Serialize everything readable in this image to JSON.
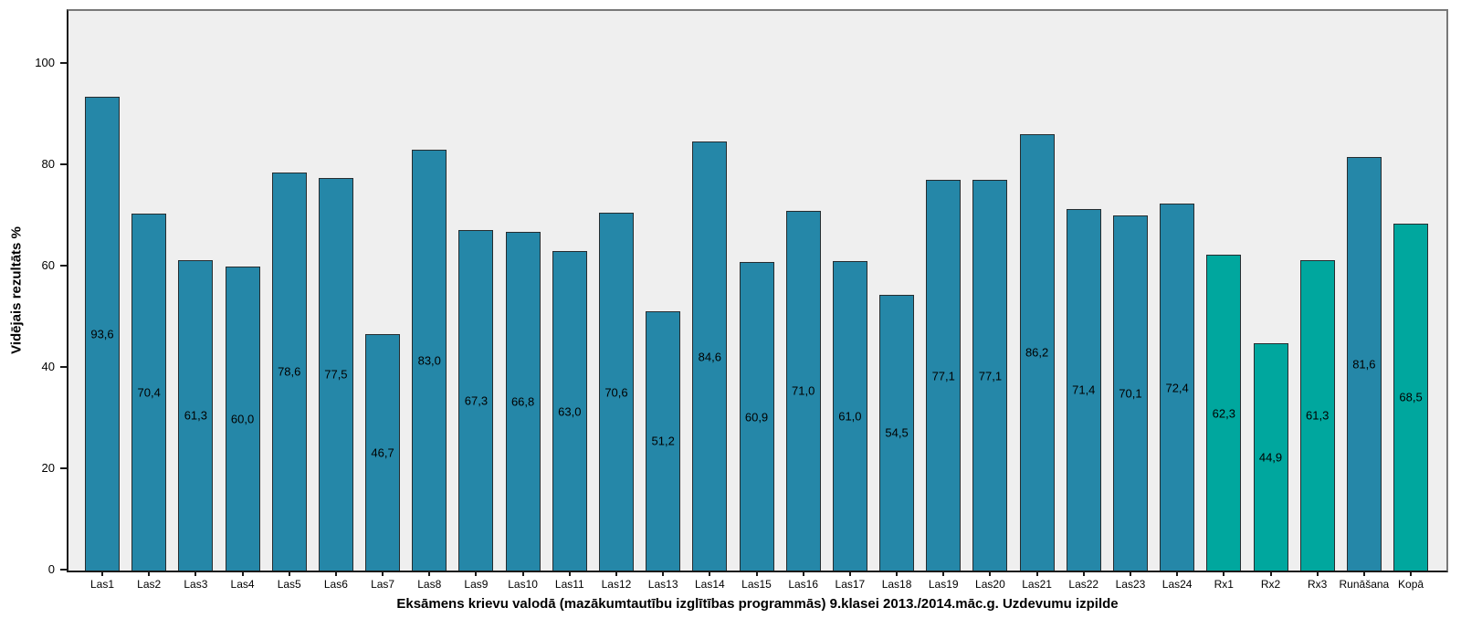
{
  "chart_data": {
    "type": "bar",
    "title": "",
    "xlabel": "Eksāmens krievu valodā (mazākumtautību izglītības programmās) 9.klasei 2013./2014.māc.g. Uzdevumu izpilde",
    "ylabel": "Vidējais rezultāts %",
    "ylim": [
      0,
      110.5
    ],
    "yticks": [
      0,
      20,
      40,
      60,
      80,
      100
    ],
    "grid": false,
    "legend_position": "none",
    "categories": [
      "Las1",
      "Las2",
      "Las3",
      "Las4",
      "Las5",
      "Las6",
      "Las7",
      "Las8",
      "Las9",
      "Las10",
      "Las11",
      "Las12",
      "Las13",
      "Las14",
      "Las15",
      "Las16",
      "Las17",
      "Las18",
      "Las19",
      "Las20",
      "Las21",
      "Las22",
      "Las23",
      "Las24",
      "Rx1",
      "Rx2",
      "Rx3",
      "Runāšana",
      "Kopā"
    ],
    "values": [
      93.6,
      70.4,
      61.3,
      60.0,
      78.6,
      77.5,
      46.7,
      83.0,
      67.3,
      66.8,
      63.0,
      70.6,
      51.2,
      84.6,
      60.9,
      71.0,
      61.0,
      54.5,
      77.1,
      77.1,
      86.2,
      71.4,
      70.1,
      72.4,
      62.3,
      44.9,
      61.3,
      81.6,
      68.5
    ],
    "value_labels": [
      "93,6",
      "70,4",
      "61,3",
      "60,0",
      "78,6",
      "77,5",
      "46,7",
      "83,0",
      "67,3",
      "66,8",
      "63,0",
      "70,6",
      "51,2",
      "84,6",
      "60,9",
      "71,0",
      "61,0",
      "54,5",
      "77,1",
      "77,1",
      "86,2",
      "71,4",
      "70,1",
      "72,4",
      "62,3",
      "44,9",
      "61,3",
      "81,6",
      "68,5"
    ],
    "bar_color_keys": [
      "blue",
      "blue",
      "blue",
      "blue",
      "blue",
      "blue",
      "blue",
      "blue",
      "blue",
      "blue",
      "blue",
      "blue",
      "blue",
      "blue",
      "blue",
      "blue",
      "blue",
      "blue",
      "blue",
      "blue",
      "blue",
      "blue",
      "blue",
      "blue",
      "teal",
      "teal",
      "teal",
      "blue",
      "teal"
    ],
    "colors": {
      "blue": "#2587A8",
      "teal": "#00A79E",
      "bar_border": "#262d30",
      "plot_background": "#efefef",
      "frame": "#787878",
      "axis": "#1a1a1a",
      "label_text": "#000000"
    }
  }
}
